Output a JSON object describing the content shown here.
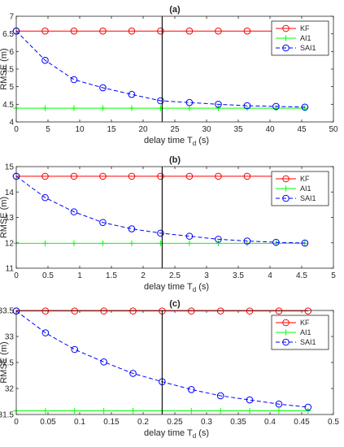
{
  "chart_data": [
    {
      "type": "line",
      "title": "(a)",
      "xlabel": "delay time T",
      "xlabel_sub": "d",
      "xlabel_unit": "(s)",
      "ylabel": "RMSE (m)",
      "xlim": [
        0,
        50
      ],
      "ylim": [
        4,
        7
      ],
      "xticks": [
        0,
        5,
        10,
        15,
        20,
        25,
        30,
        35,
        40,
        45,
        50
      ],
      "xtick_labels": [
        "0",
        "5",
        "10",
        "15",
        "20",
        "25",
        "30",
        "35",
        "40",
        "45",
        "50"
      ],
      "yticks": [
        4,
        4.5,
        5,
        5.5,
        6,
        6.5,
        7
      ],
      "ytick_labels": [
        "4",
        "4.5",
        "5",
        "5.5",
        "6",
        "6.5",
        "7"
      ],
      "vline_x": 23,
      "legend_position": "top-right",
      "x": [
        0,
        4.55,
        9.1,
        13.65,
        18.2,
        22.75,
        27.3,
        31.85,
        36.4,
        40.95,
        45.5
      ],
      "series": [
        {
          "name": "KF",
          "color": "#ff0000",
          "style": "solid",
          "marker": "circle",
          "values": [
            6.58,
            6.58,
            6.58,
            6.58,
            6.58,
            6.58,
            6.58,
            6.58,
            6.58,
            6.58,
            6.58
          ]
        },
        {
          "name": "AI1",
          "color": "#00ff00",
          "style": "solid",
          "marker": "plus",
          "values": [
            4.39,
            4.39,
            4.39,
            4.39,
            4.39,
            4.39,
            4.39,
            4.39,
            4.39,
            4.39,
            4.39
          ]
        },
        {
          "name": "SAI1",
          "color": "#0000ff",
          "style": "dashed",
          "marker": "circle",
          "values": [
            6.58,
            5.75,
            5.2,
            4.97,
            4.78,
            4.6,
            4.55,
            4.5,
            4.46,
            4.44,
            4.42
          ]
        }
      ]
    },
    {
      "type": "line",
      "title": "(b)",
      "xlabel": "delay time T",
      "xlabel_sub": "d",
      "xlabel_unit": "(s)",
      "ylabel": "RMSE (m)",
      "xlim": [
        0,
        5
      ],
      "ylim": [
        11,
        15
      ],
      "xticks": [
        0,
        0.5,
        1,
        1.5,
        2,
        2.5,
        3,
        3.5,
        4,
        4.5,
        5
      ],
      "xtick_labels": [
        "0",
        "0.5",
        "1",
        "1.5",
        "2",
        "2.5",
        "3",
        "3.5",
        "4",
        "4.5",
        "5"
      ],
      "yticks": [
        11,
        12,
        13,
        14,
        15
      ],
      "ytick_labels": [
        "11",
        "12",
        "13",
        "14",
        "15"
      ],
      "vline_x": 2.3,
      "legend_position": "top-right",
      "x": [
        0,
        0.455,
        0.91,
        1.365,
        1.82,
        2.275,
        2.73,
        3.185,
        3.64,
        4.095,
        4.55
      ],
      "series": [
        {
          "name": "KF",
          "color": "#ff0000",
          "style": "solid",
          "marker": "circle",
          "values": [
            14.62,
            14.62,
            14.62,
            14.62,
            14.62,
            14.62,
            14.62,
            14.62,
            14.62,
            14.62,
            14.62
          ]
        },
        {
          "name": "AI1",
          "color": "#00ff00",
          "style": "solid",
          "marker": "plus",
          "values": [
            11.98,
            11.98,
            11.98,
            11.98,
            11.98,
            11.98,
            11.98,
            11.98,
            11.98,
            11.98,
            11.98
          ]
        },
        {
          "name": "SAI1",
          "color": "#0000ff",
          "style": "dashed",
          "marker": "circle",
          "values": [
            14.62,
            13.78,
            13.22,
            12.8,
            12.55,
            12.38,
            12.26,
            12.14,
            12.07,
            12.02,
            11.99
          ]
        }
      ]
    },
    {
      "type": "line",
      "title": "(c)",
      "xlabel": "delay time T",
      "xlabel_sub": "d",
      "xlabel_unit": "(s)",
      "ylabel": "RMSE (m)",
      "xlim": [
        0,
        0.5
      ],
      "ylim": [
        31.5,
        33.5
      ],
      "xticks": [
        0,
        0.05,
        0.1,
        0.15,
        0.2,
        0.25,
        0.3,
        0.35,
        0.4,
        0.45,
        0.5
      ],
      "xtick_labels": [
        "0",
        "0.05",
        "0.1",
        "0.15",
        "0.2",
        "0.25",
        "0.3",
        "0.35",
        "0.4",
        "0.45",
        "0.5"
      ],
      "yticks": [
        31.5,
        32,
        32.5,
        33,
        33.5
      ],
      "ytick_labels": [
        "31.5",
        "32",
        "32.5",
        "33",
        "33.5"
      ],
      "vline_x": 0.23,
      "legend_position": "top-right",
      "x": [
        0,
        0.046,
        0.092,
        0.138,
        0.184,
        0.23,
        0.276,
        0.322,
        0.368,
        0.414,
        0.46
      ],
      "series": [
        {
          "name": "KF",
          "color": "#ff0000",
          "style": "solid",
          "marker": "circle",
          "values": [
            33.49,
            33.49,
            33.49,
            33.49,
            33.49,
            33.49,
            33.49,
            33.49,
            33.49,
            33.49,
            33.49
          ]
        },
        {
          "name": "AI1",
          "color": "#00ff00",
          "style": "solid",
          "marker": "plus",
          "values": [
            31.57,
            31.57,
            31.57,
            31.57,
            31.57,
            31.57,
            31.57,
            31.57,
            31.57,
            31.57,
            31.57
          ]
        },
        {
          "name": "SAI1",
          "color": "#0000ff",
          "style": "dashed",
          "marker": "circle",
          "values": [
            33.49,
            33.07,
            32.75,
            32.51,
            32.29,
            32.13,
            31.98,
            31.86,
            31.78,
            31.7,
            31.64
          ]
        }
      ]
    }
  ]
}
